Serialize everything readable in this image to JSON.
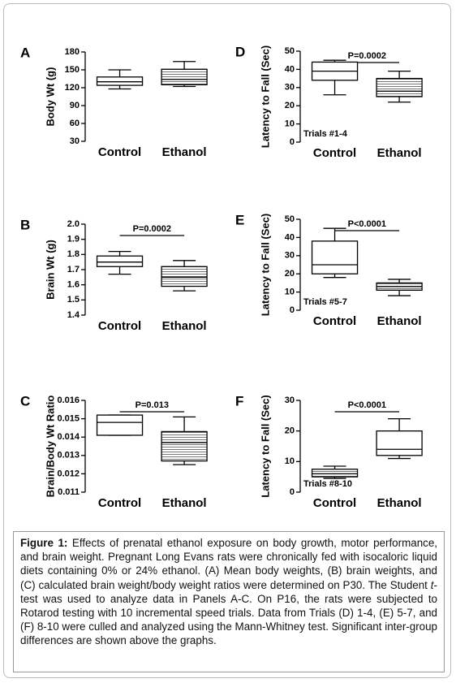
{
  "chart_data": [
    {
      "type": "box",
      "panel": "A",
      "ylabel": "Body Wt (g)",
      "categories": [
        "Control",
        "Ethanol"
      ],
      "boxes": [
        {
          "min": 118,
          "q1": 124,
          "median": 130,
          "q3": 138,
          "max": 150
        },
        {
          "min": 122,
          "q1": 125,
          "median": 134,
          "q3": 151,
          "max": 164
        }
      ],
      "hatch": [
        false,
        true
      ],
      "ylim": [
        30,
        180
      ],
      "yticks": [
        30,
        60,
        90,
        120,
        150,
        180
      ]
    },
    {
      "type": "box",
      "panel": "B",
      "ylabel": "Brain Wt (g)",
      "annotation": "P=0.0002",
      "categories": [
        "Control",
        "Ethanol"
      ],
      "boxes": [
        {
          "min": 1.67,
          "q1": 1.72,
          "median": 1.75,
          "q3": 1.79,
          "max": 1.82
        },
        {
          "min": 1.56,
          "q1": 1.59,
          "median": 1.65,
          "q3": 1.72,
          "max": 1.76
        }
      ],
      "hatch": [
        false,
        true
      ],
      "ylim": [
        1.4,
        2.0
      ],
      "yticks": [
        1.4,
        1.5,
        1.6,
        1.7,
        1.8,
        1.9,
        {
          "value": 2.0,
          "label": "2.0"
        }
      ]
    },
    {
      "type": "box",
      "panel": "C",
      "ylabel": "Brain/Body Wt Ratio",
      "annotation": "P=0.013",
      "categories": [
        "Control",
        "Ethanol"
      ],
      "boxes": [
        {
          "min": 0.0141,
          "q1": 0.0141,
          "median": 0.0148,
          "q3": 0.0152,
          "max": 0.0152
        },
        {
          "min": 0.0125,
          "q1": 0.0127,
          "median": 0.0137,
          "q3": 0.0143,
          "max": 0.0151
        }
      ],
      "hatch": [
        false,
        true
      ],
      "ylim": [
        0.011,
        0.016
      ],
      "yticks": [
        0.011,
        0.012,
        0.013,
        0.014,
        0.015,
        0.016
      ]
    },
    {
      "type": "box",
      "panel": "D",
      "ylabel": "Latency to  Fall (Sec)",
      "annotation": "P=0.0002",
      "note": "Trials #1-4",
      "categories": [
        "Control",
        "Ethanol"
      ],
      "boxes": [
        {
          "min": 26,
          "q1": 34,
          "median": 39,
          "q3": 44,
          "max": 45
        },
        {
          "min": 22,
          "q1": 25,
          "median": 28,
          "q3": 35,
          "max": 39
        }
      ],
      "hatch": [
        false,
        true
      ],
      "ylim": [
        0,
        50
      ],
      "yticks": [
        0,
        10,
        20,
        30,
        40,
        50
      ]
    },
    {
      "type": "box",
      "panel": "E",
      "ylabel": "Latency to  Fall (Sec)",
      "annotation": "P<0.0001",
      "note": "Trials #5-7",
      "categories": [
        "Control",
        "Ethanol"
      ],
      "boxes": [
        {
          "min": 18,
          "q1": 20,
          "median": 25,
          "q3": 38,
          "max": 45
        },
        {
          "min": 8,
          "q1": 11,
          "median": 13,
          "q3": 15,
          "max": 17
        }
      ],
      "hatch": [
        false,
        true
      ],
      "ylim": [
        0,
        50
      ],
      "yticks": [
        0,
        10,
        20,
        30,
        40,
        50
      ]
    },
    {
      "type": "box",
      "panel": "F",
      "ylabel": "Latency to  Fall (Sec)",
      "annotation": "P<0.0001",
      "note": "Trials #8-10",
      "categories": [
        "Control",
        "Ethanol"
      ],
      "boxes": [
        {
          "min": 4.5,
          "q1": 5,
          "median": 6,
          "q3": 7.5,
          "max": 8.5
        },
        {
          "min": 11,
          "q1": 12,
          "median": 14,
          "q3": 20,
          "max": 24
        }
      ],
      "hatch": [
        true,
        false
      ],
      "ylim": [
        0,
        30
      ],
      "yticks": [
        0,
        10,
        20,
        30
      ]
    }
  ],
  "caption": {
    "label": "Figure 1:",
    "text1": " Effects of prenatal ethanol exposure on body growth, motor performance, and brain weight. Pregnant Long Evans rats were chronically fed with isocaloric liquid diets containing 0% or 24% ethanol. (A) Mean body weights, (B) brain weights, and (C) calculated brain weight/body weight ratios were determined on P30. The Student ",
    "italic": "t",
    "text2": "-test was used to analyze data in Panels A-C. On P16, the rats were subjected to Rotarod testing with 10 incremental speed trials. Data from Trials (D) 1-4, (E) 5-7, and (F) 8-10 were culled and analyzed using the Mann-Whitney test.  Significant inter-group differences are shown above the graphs."
  }
}
